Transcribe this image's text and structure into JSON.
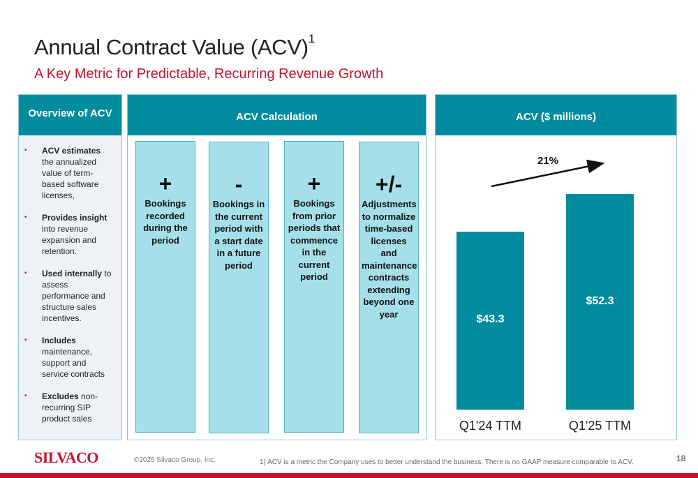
{
  "title": "Annual Contract Value (ACV)",
  "title_sup": "1",
  "subtitle": "A Key Metric for Predictable, Recurring Revenue Growth",
  "overview": {
    "header": "Overview of ACV",
    "items": [
      {
        "bold": "ACV estimates",
        "rest": " the annualized value of term-based software licenses,"
      },
      {
        "bold": "Provides insight",
        "rest": " into revenue expansion and retention."
      },
      {
        "bold": "Used internally",
        "rest": " to assess performance and structure sales incentives."
      },
      {
        "bold": "Includes",
        "rest": " maintenance, support and service contracts"
      },
      {
        "bold": "Excludes",
        "rest": " non-recurring SIP product sales"
      }
    ]
  },
  "calculation": {
    "header": "ACV Calculation",
    "boxes": [
      {
        "symbol": "+",
        "text": "Bookings recorded during the period"
      },
      {
        "symbol": "-",
        "text": "Bookings in the current period with a start date in a future period"
      },
      {
        "symbol": "+",
        "text": "Bookings from prior periods that commence in the current period"
      },
      {
        "symbol": "+/-",
        "text": "Adjustments to normalize time-based licenses and maintenance contracts extending beyond one year"
      }
    ]
  },
  "chart_data": {
    "type": "bar",
    "title": "ACV ($ millions)",
    "categories": [
      "Q1'24 TTM",
      "Q1'25 TTM"
    ],
    "values": [
      43.3,
      52.3
    ],
    "data_labels": [
      "$43.3",
      "$52.3"
    ],
    "annotation": "21%",
    "color": "#008c9e"
  },
  "footer": {
    "logo": "SILVACO",
    "copyright": "©2025 Silvaco Group, Inc.",
    "footnote": "1)  ACV is a metric the Company uses to better understand the business. There is no GAAP measure comparable to ACV.",
    "page": "18"
  },
  "colors": {
    "brand_red": "#c8102e",
    "teal": "#008c9e",
    "light_teal": "#a5e0ea"
  }
}
